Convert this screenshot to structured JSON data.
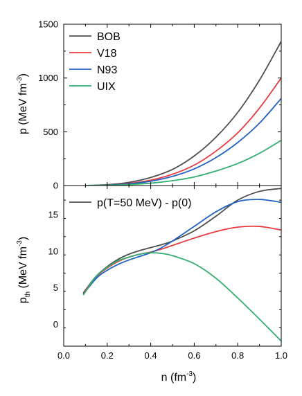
{
  "chart_data": [
    {
      "type": "line",
      "panel": "top",
      "ylabel": "p (MeV fm",
      "ylabel_sup": "-3",
      "ylabel_end": ")",
      "xlim": [
        0.0,
        1.0
      ],
      "ylim": [
        0,
        1500
      ],
      "yticks": [
        0,
        500,
        1000,
        1500
      ],
      "legend_position": "top-left",
      "series": [
        {
          "name": "BOB",
          "color": "#4d4d4d",
          "x": [
            0.1,
            0.2,
            0.3,
            0.4,
            0.5,
            0.6,
            0.7,
            0.8,
            0.9,
            1.0
          ],
          "y": [
            0,
            8,
            30,
            75,
            150,
            275,
            450,
            680,
            980,
            1340
          ]
        },
        {
          "name": "V18",
          "color": "#e8383d",
          "x": [
            0.1,
            0.2,
            0.3,
            0.4,
            0.5,
            0.6,
            0.7,
            0.8,
            0.9,
            1.0
          ],
          "y": [
            0,
            5,
            20,
            50,
            105,
            190,
            320,
            490,
            720,
            1000
          ]
        },
        {
          "name": "N93",
          "color": "#1f62c4",
          "x": [
            0.1,
            0.2,
            0.3,
            0.4,
            0.5,
            0.6,
            0.7,
            0.8,
            0.9,
            1.0
          ],
          "y": [
            0,
            4,
            16,
            40,
            85,
            155,
            260,
            400,
            580,
            810
          ]
        },
        {
          "name": "UIX",
          "color": "#2fae6e",
          "x": [
            0.1,
            0.2,
            0.3,
            0.4,
            0.5,
            0.6,
            0.7,
            0.8,
            0.9,
            1.0
          ],
          "y": [
            0,
            2,
            9,
            22,
            45,
            80,
            135,
            205,
            300,
            420
          ]
        }
      ]
    },
    {
      "type": "line",
      "panel": "bottom",
      "xlabel": "n (fm",
      "xlabel_sup": "-3",
      "xlabel_end": ")",
      "ylabel": "p",
      "ylabel_sub": "th",
      "ylabel_mid": " (MeV fm",
      "ylabel_sup": "-3",
      "ylabel_end": ")",
      "xlim": [
        0.0,
        1.0
      ],
      "xticks": [
        "0.0",
        "0.2",
        "0.4",
        "0.6",
        "0.8",
        "1.0"
      ],
      "ylim": [
        -3,
        19
      ],
      "yticks": [
        0,
        5,
        10,
        15
      ],
      "legend_position": "top-left",
      "legend_text": "p(T=50 MeV) - p(0)",
      "legend_color": "#4d4d4d",
      "series": [
        {
          "name": "BOB",
          "color": "#4d4d4d",
          "x": [
            0.09,
            0.15,
            0.2,
            0.25,
            0.3,
            0.35,
            0.4,
            0.45,
            0.5,
            0.6,
            0.7,
            0.8,
            0.9,
            1.0
          ],
          "y": [
            4.3,
            6.6,
            7.9,
            8.9,
            9.6,
            10.1,
            10.5,
            10.9,
            11.4,
            12.8,
            14.8,
            17.0,
            18.2,
            18.6
          ]
        },
        {
          "name": "V18",
          "color": "#e8383d",
          "x": [
            0.09,
            0.15,
            0.2,
            0.25,
            0.3,
            0.35,
            0.4,
            0.45,
            0.5,
            0.6,
            0.7,
            0.8,
            0.9,
            1.0
          ],
          "y": [
            4.2,
            6.5,
            7.7,
            8.6,
            9.2,
            9.6,
            9.9,
            10.3,
            10.8,
            11.8,
            12.7,
            13.3,
            13.4,
            12.9
          ]
        },
        {
          "name": "N93",
          "color": "#1f62c4",
          "x": [
            0.09,
            0.15,
            0.2,
            0.25,
            0.3,
            0.35,
            0.4,
            0.45,
            0.5,
            0.6,
            0.7,
            0.8,
            0.9,
            1.0
          ],
          "y": [
            4.1,
            6.3,
            7.4,
            8.2,
            8.8,
            9.3,
            9.8,
            10.5,
            11.4,
            13.4,
            15.4,
            16.8,
            17.1,
            16.7
          ]
        },
        {
          "name": "UIX",
          "color": "#2fae6e",
          "x": [
            0.09,
            0.15,
            0.2,
            0.25,
            0.3,
            0.35,
            0.4,
            0.45,
            0.5,
            0.6,
            0.7,
            0.8,
            0.9,
            1.0
          ],
          "y": [
            4.0,
            6.6,
            7.8,
            8.7,
            9.2,
            9.6,
            9.8,
            9.7,
            9.4,
            8.3,
            6.3,
            3.6,
            0.7,
            -2.3
          ]
        }
      ]
    }
  ]
}
